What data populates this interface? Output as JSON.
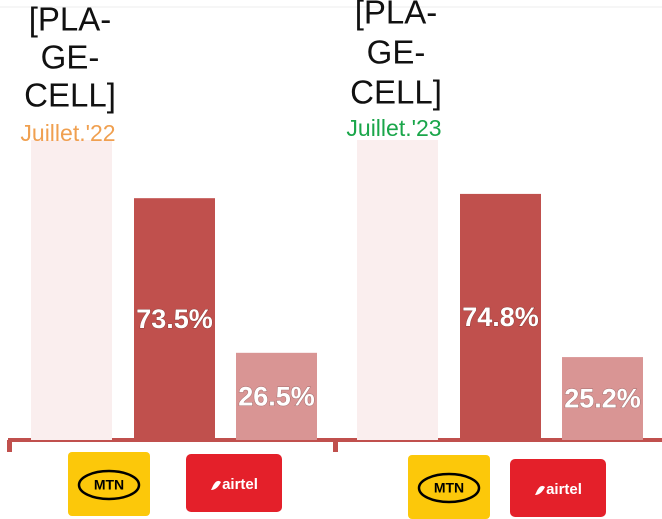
{
  "chart_data": [
    {
      "type": "bar",
      "title_lines": [
        "[PLA-",
        "GE-",
        "CELL]"
      ],
      "subtitle": "Juillet.'22",
      "subtitle_color": "#f0a050",
      "categories": [
        "MTN",
        "airtel"
      ],
      "values": [
        73.5,
        26.5
      ],
      "value_labels": [
        "73.5%",
        "26.5%"
      ],
      "colors": [
        "#c0504d",
        "#d99594"
      ]
    },
    {
      "type": "bar",
      "title_lines": [
        "[PLA-",
        "GE-",
        "CELL]"
      ],
      "subtitle": "Juillet.'23",
      "subtitle_color": "#1aa64a",
      "categories": [
        "MTN",
        "airtel"
      ],
      "values": [
        74.8,
        25.2
      ],
      "value_labels": [
        "74.8%",
        "25.2%"
      ],
      "colors": [
        "#c0504d",
        "#d99594"
      ]
    }
  ]
}
